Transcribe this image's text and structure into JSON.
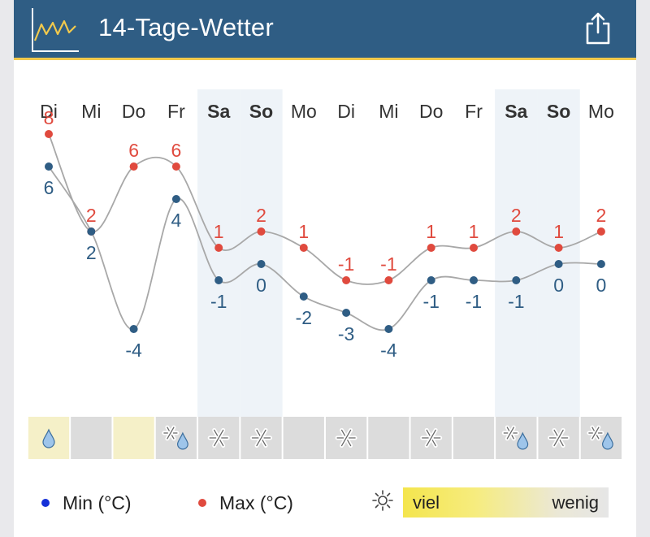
{
  "header": {
    "title": "14-Tage-Wetter",
    "share_icon": "share-icon",
    "app_icon": "chart-line-icon"
  },
  "colors": {
    "header": "#2f5d84",
    "accent": "#f2c94c",
    "min": "#2f5d84",
    "max": "#e04a3e",
    "weekend": "#eef3f8"
  },
  "chart_data": {
    "type": "line",
    "x": [
      "Di",
      "Mi",
      "Do",
      "Fr",
      "Sa",
      "So",
      "Mo",
      "Di",
      "Mi",
      "Do",
      "Fr",
      "Sa",
      "So",
      "Mo"
    ],
    "weekend": [
      false,
      false,
      false,
      false,
      true,
      true,
      false,
      false,
      false,
      false,
      false,
      true,
      true,
      false
    ],
    "series": [
      {
        "name": "Max (°C)",
        "color": "#e04a3e",
        "values": [
          8,
          2,
          6,
          6,
          1,
          2,
          1,
          -1,
          -1,
          1,
          1,
          2,
          1,
          2
        ]
      },
      {
        "name": "Min (°C)",
        "color": "#2f5d84",
        "values": [
          6,
          2,
          -4,
          4,
          -1,
          0,
          -2,
          -3,
          -4,
          -1,
          -1,
          -1,
          0,
          0
        ]
      }
    ],
    "precip": [
      "rain",
      "none",
      "none",
      "snow-rain",
      "snow",
      "snow",
      "none",
      "snow",
      "none",
      "snow",
      "none",
      "snow-rain",
      "snow",
      "snow-rain"
    ],
    "sunshine": [
      "high",
      "none",
      "high",
      "none",
      "none",
      "none",
      "none",
      "none",
      "none",
      "none",
      "none",
      "none",
      "none",
      "none"
    ]
  },
  "legend": {
    "min_label": "Min (°C)",
    "max_label": "Max (°C)",
    "sun_high": "viel",
    "sun_low": "wenig",
    "sun_icon": "sun-icon"
  }
}
